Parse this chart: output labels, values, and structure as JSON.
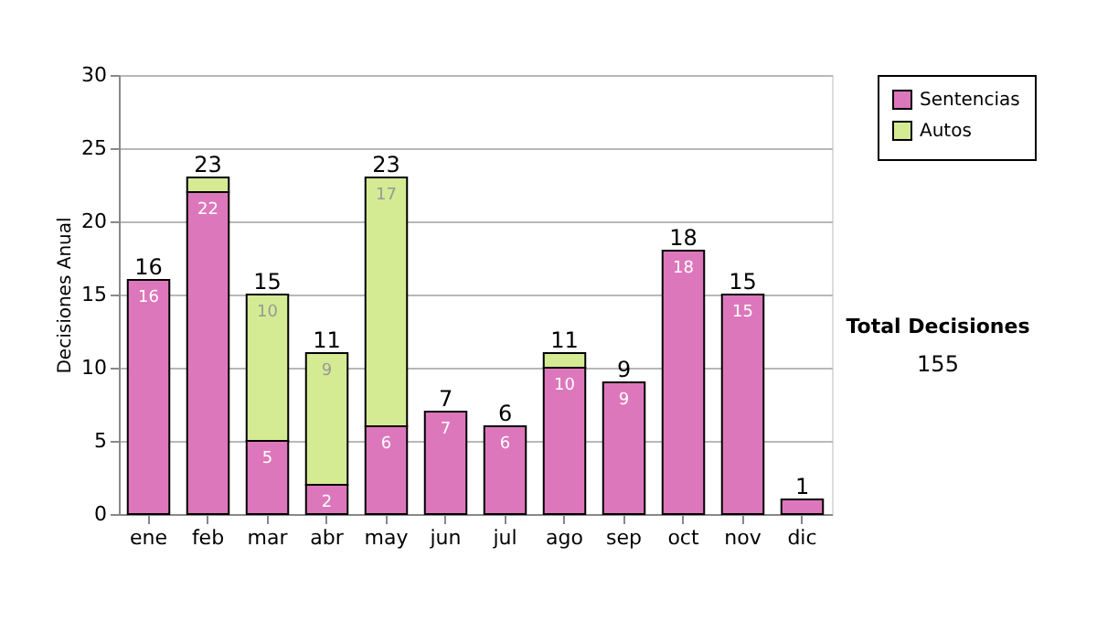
{
  "chart_data": {
    "type": "bar",
    "stacked": true,
    "ylabel": "Decisiones Anual",
    "categories": [
      "ene",
      "feb",
      "mar",
      "abr",
      "may",
      "jun",
      "jul",
      "ago",
      "sep",
      "oct",
      "nov",
      "dic"
    ],
    "series": [
      {
        "name": "Sentencias",
        "color": "#dd77bb",
        "values": [
          16,
          22,
          5,
          2,
          6,
          7,
          6,
          10,
          9,
          18,
          15,
          1
        ],
        "value_labels": [
          "16",
          "22",
          "5",
          "2",
          "6",
          "7",
          "6",
          "10",
          "9",
          "18",
          "15",
          null
        ]
      },
      {
        "name": "Autos",
        "color": "#d4eb94",
        "values": [
          0,
          1,
          10,
          9,
          17,
          0,
          0,
          1,
          0,
          0,
          0,
          0
        ],
        "value_labels": [
          null,
          null,
          "10",
          "9",
          "17",
          null,
          null,
          null,
          null,
          null,
          null,
          null
        ]
      }
    ],
    "totals": [
      "16",
      "23",
      "15",
      "11",
      "23",
      "7",
      "6",
      "11",
      "9",
      "18",
      "15",
      "1"
    ],
    "ylim": [
      0,
      30
    ],
    "yticks": [
      0,
      5,
      10,
      15,
      20,
      25,
      30
    ],
    "grid": "y",
    "legend": "right",
    "annotations": [
      "Total Decisiones",
      "155"
    ]
  }
}
